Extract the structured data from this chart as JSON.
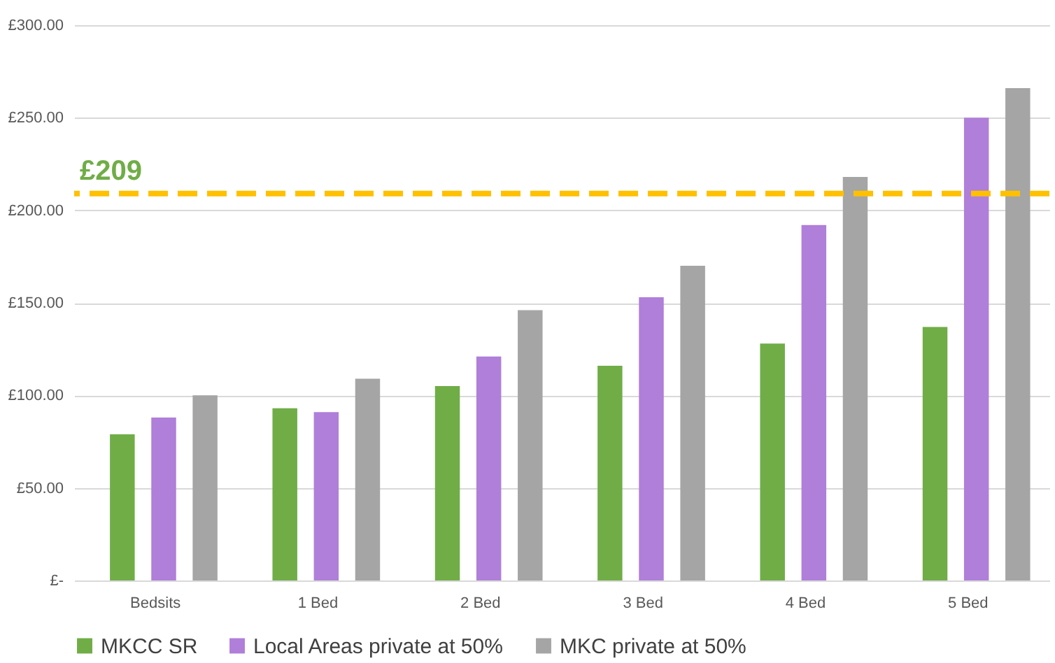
{
  "chart_data": {
    "type": "bar",
    "categories": [
      "Bedsits",
      "1 Bed",
      "2 Bed",
      "3 Bed",
      "4 Bed",
      "5 Bed"
    ],
    "series": [
      {
        "name": "MKCC SR",
        "color": "#70ad47",
        "values": [
          79,
          93,
          105,
          116,
          128,
          137
        ]
      },
      {
        "name": "Local Areas private at 50%",
        "color": "#b07fd9",
        "values": [
          88,
          91,
          121,
          153,
          192,
          250
        ]
      },
      {
        "name": "MKC private at 50%",
        "color": "#a5a5a5",
        "values": [
          100,
          109,
          146,
          170,
          218,
          266
        ]
      }
    ],
    "ylim": [
      0,
      300
    ],
    "yticks": [
      {
        "value": 0,
        "label": "£-"
      },
      {
        "value": 50,
        "label": "£50.00"
      },
      {
        "value": 100,
        "label": "£100.00"
      },
      {
        "value": 150,
        "label": "£150.00"
      },
      {
        "value": 200,
        "label": "£200.00"
      },
      {
        "value": 250,
        "label": "£250.00"
      },
      {
        "value": 300,
        "label": "£300.00"
      }
    ],
    "ref_lines": [
      {
        "axis": "y",
        "value": 209,
        "label": "£209",
        "color": "#ffc000",
        "line_style": "dashed"
      }
    ],
    "grid": "y",
    "legend": "bottom"
  }
}
